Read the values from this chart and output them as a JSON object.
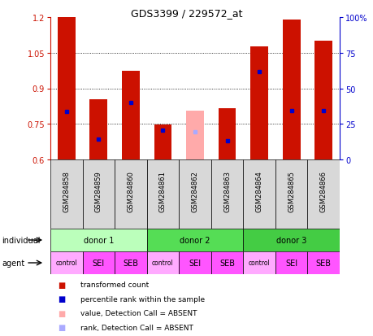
{
  "title": "GDS3399 / 229572_at",
  "samples": [
    "GSM284858",
    "GSM284859",
    "GSM284860",
    "GSM284861",
    "GSM284862",
    "GSM284863",
    "GSM284864",
    "GSM284865",
    "GSM284866"
  ],
  "bar_heights": [
    1.2,
    0.855,
    0.975,
    0.748,
    0.0,
    0.815,
    1.075,
    1.19,
    1.1
  ],
  "bar_absent": [
    false,
    false,
    false,
    false,
    true,
    false,
    false,
    false,
    false
  ],
  "absent_heights": [
    0.0,
    0.0,
    0.0,
    0.0,
    0.805,
    0.0,
    0.0,
    0.0,
    0.0
  ],
  "percentile_values": [
    0.804,
    0.685,
    0.84,
    0.725,
    0.715,
    0.68,
    0.97,
    0.805,
    0.805
  ],
  "percentile_absent": [
    false,
    false,
    false,
    false,
    true,
    false,
    false,
    false,
    false
  ],
  "absent_percentile": [
    0.0,
    0.0,
    0.0,
    0.0,
    0.715,
    0.0,
    0.0,
    0.0,
    0.0
  ],
  "ylim": [
    0.6,
    1.2
  ],
  "yticks": [
    0.6,
    0.75,
    0.9,
    1.05,
    1.2
  ],
  "ytick_labels": [
    "0.6",
    "0.75",
    "0.9",
    "1.05",
    "1.2"
  ],
  "y2ticks": [
    0,
    25,
    50,
    75,
    100
  ],
  "y2tick_labels": [
    "0",
    "25",
    "50",
    "75",
    "100%"
  ],
  "bar_color": "#cc1100",
  "absent_bar_color": "#ffaaaa",
  "percentile_color": "#0000cc",
  "absent_percentile_color": "#aaaaff",
  "bar_width": 0.55,
  "donors": [
    {
      "label": "donor 1",
      "start": 0,
      "end": 3,
      "color": "#bbffbb"
    },
    {
      "label": "donor 2",
      "start": 3,
      "end": 6,
      "color": "#55dd55"
    },
    {
      "label": "donor 3",
      "start": 6,
      "end": 9,
      "color": "#44cc44"
    }
  ],
  "agents": [
    "control",
    "SEI",
    "SEB",
    "control",
    "SEI",
    "SEB",
    "control",
    "SEI",
    "SEB"
  ],
  "agent_colors": [
    "#ffaaff",
    "#ff55ff",
    "#ff55ff",
    "#ffaaff",
    "#ff55ff",
    "#ff55ff",
    "#ffaaff",
    "#ff55ff",
    "#ff55ff"
  ],
  "tick_label_fontsize": 7,
  "sample_label_fontsize": 6,
  "label_color_left": "#cc1100",
  "label_color_right": "#0000cc",
  "bg_color": "#d8d8d8"
}
